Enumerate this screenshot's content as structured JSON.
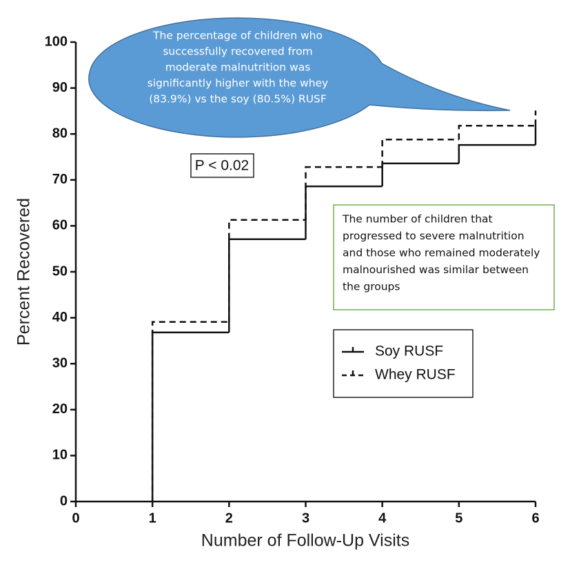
{
  "chart_data": {
    "type": "step",
    "x_label": "Number of Follow-Up Visits",
    "y_label": "Percent Recovered",
    "x": [
      1,
      2,
      3,
      4,
      5,
      6
    ],
    "series": [
      {
        "name": "Soy RUSF",
        "color": "#111111",
        "dash": "solid",
        "values": [
          36.8,
          57.1,
          68.6,
          73.6,
          77.6,
          81.8
        ]
      },
      {
        "name": "Whey RUSF",
        "color": "#111111",
        "dash": "dashed",
        "values": [
          39.1,
          61.3,
          72.8,
          78.8,
          81.8,
          85.1
        ]
      }
    ],
    "xlim": [
      0,
      6
    ],
    "xticks": [
      0,
      1,
      2,
      3,
      4,
      5,
      6
    ],
    "ylim": [
      0,
      100
    ],
    "yticks": [
      0,
      10,
      20,
      30,
      40,
      50,
      60,
      70,
      80,
      90,
      100
    ],
    "p_value_label": "P < 0.02",
    "bubble_annotation": [
      "The percentage of children who",
      "successfully recovered from",
      "moderate malnutrition was",
      "significantly higher with the whey",
      "(83.9%) vs the soy (80.5%) RUSF"
    ],
    "box_annotation": [
      "The number of children that",
      "progressed to severe malnutrition",
      "and those who remained moderately",
      "malnourished was similar between",
      "the groups"
    ]
  }
}
